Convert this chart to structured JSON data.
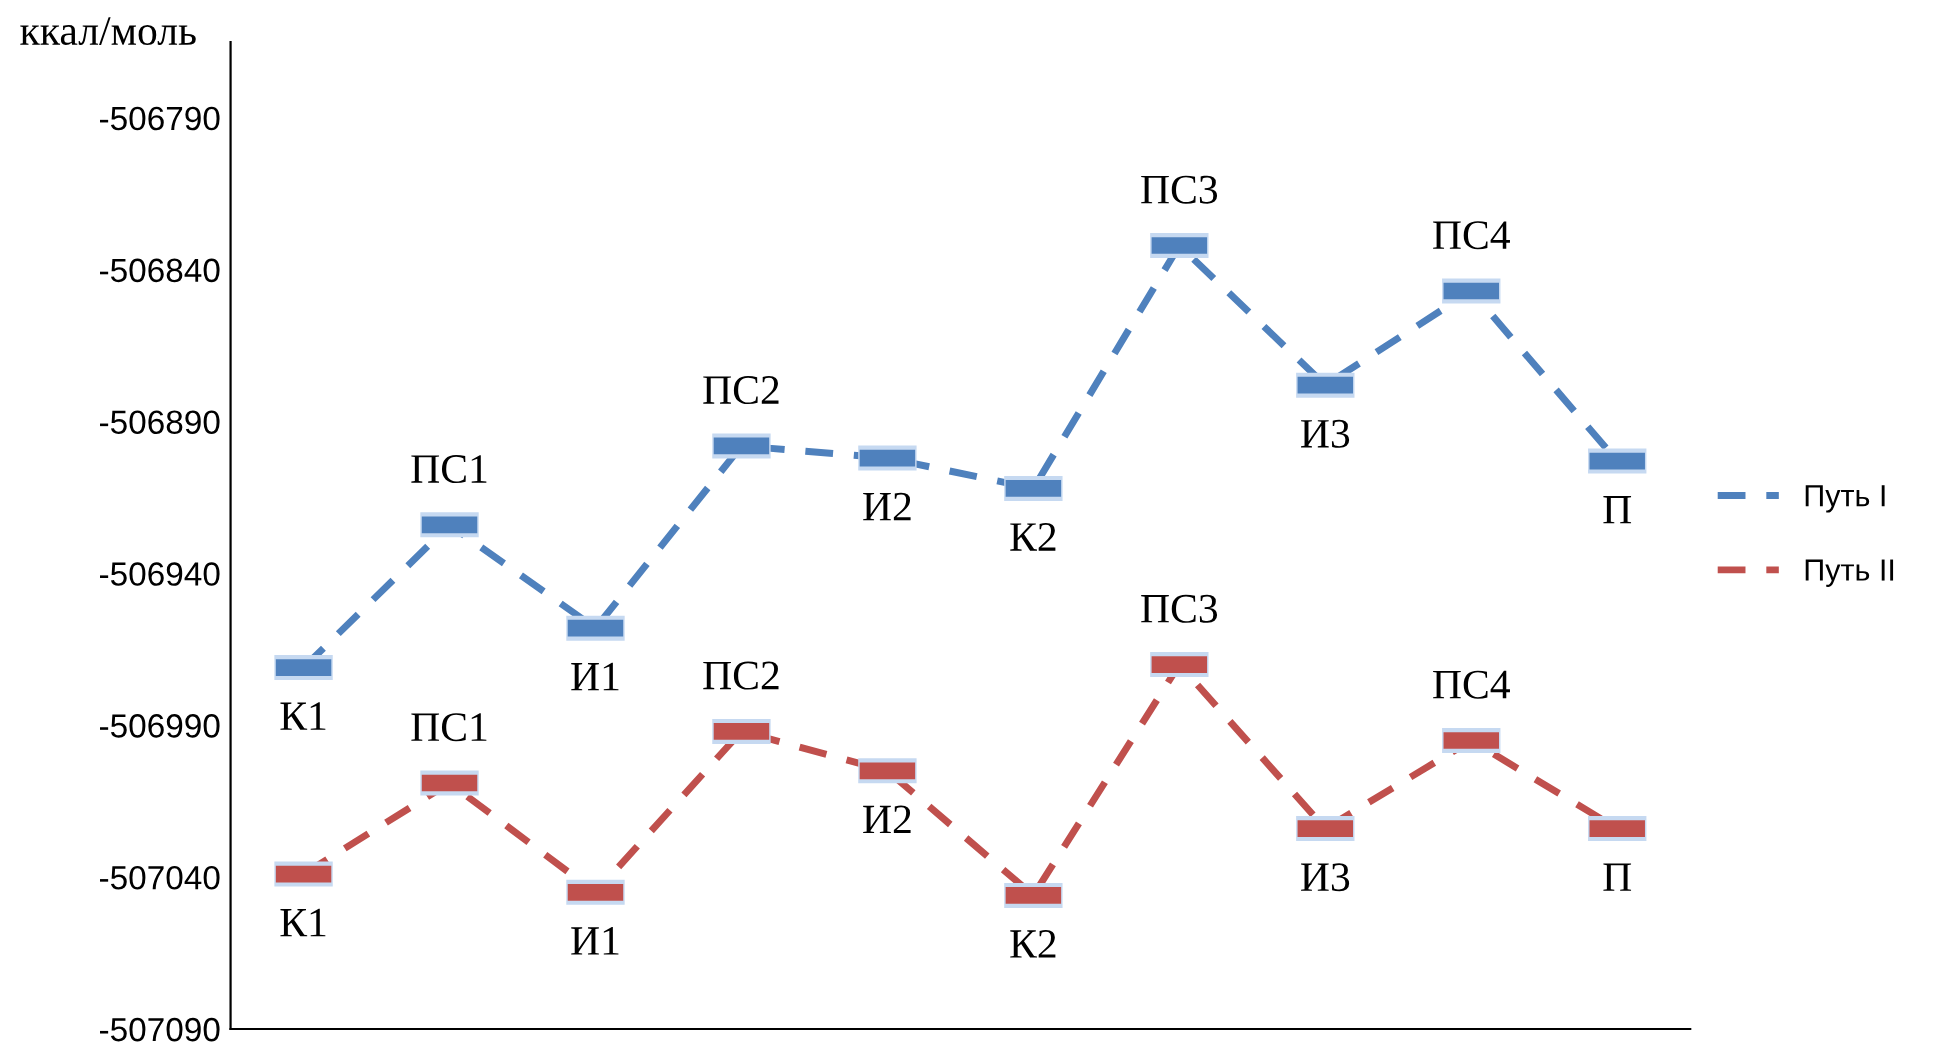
{
  "chart_data": {
    "type": "line",
    "ylabel": "ккал/моль",
    "categories": [
      null,
      null,
      null,
      null,
      null,
      null,
      null,
      null,
      null,
      null
    ],
    "series": [
      {
        "name": "Путь I",
        "color": "#4f81bd",
        "values": [
          -506971,
          -506924,
          -506958,
          -506898,
          -506902,
          -506912,
          -506832,
          -506878,
          -506847,
          -506903
        ],
        "value_labels": [
          "К1",
          "ПС1",
          "И1",
          "ПС2",
          "И2",
          "К2",
          "ПС3",
          "И3",
          "ПС4",
          "П"
        ]
      },
      {
        "name": "Путь II",
        "color": "#c0504d",
        "values": [
          -507039,
          -507009,
          -507045,
          -506992,
          -507005,
          -507046,
          -506970,
          -507024,
          -506995,
          -507024
        ],
        "value_labels": [
          "К1",
          "ПС1",
          "И1",
          "ПС2",
          "И2",
          "К2",
          "ПС3",
          "И3",
          "ПС4",
          "П"
        ]
      }
    ],
    "ylim": [
      -507090,
      -506765
    ],
    "yticks": [
      -507090,
      -507040,
      -506990,
      -506940,
      -506890,
      -506840,
      -506790
    ],
    "line_style": "dashed",
    "legend": "right",
    "grid": false
  }
}
